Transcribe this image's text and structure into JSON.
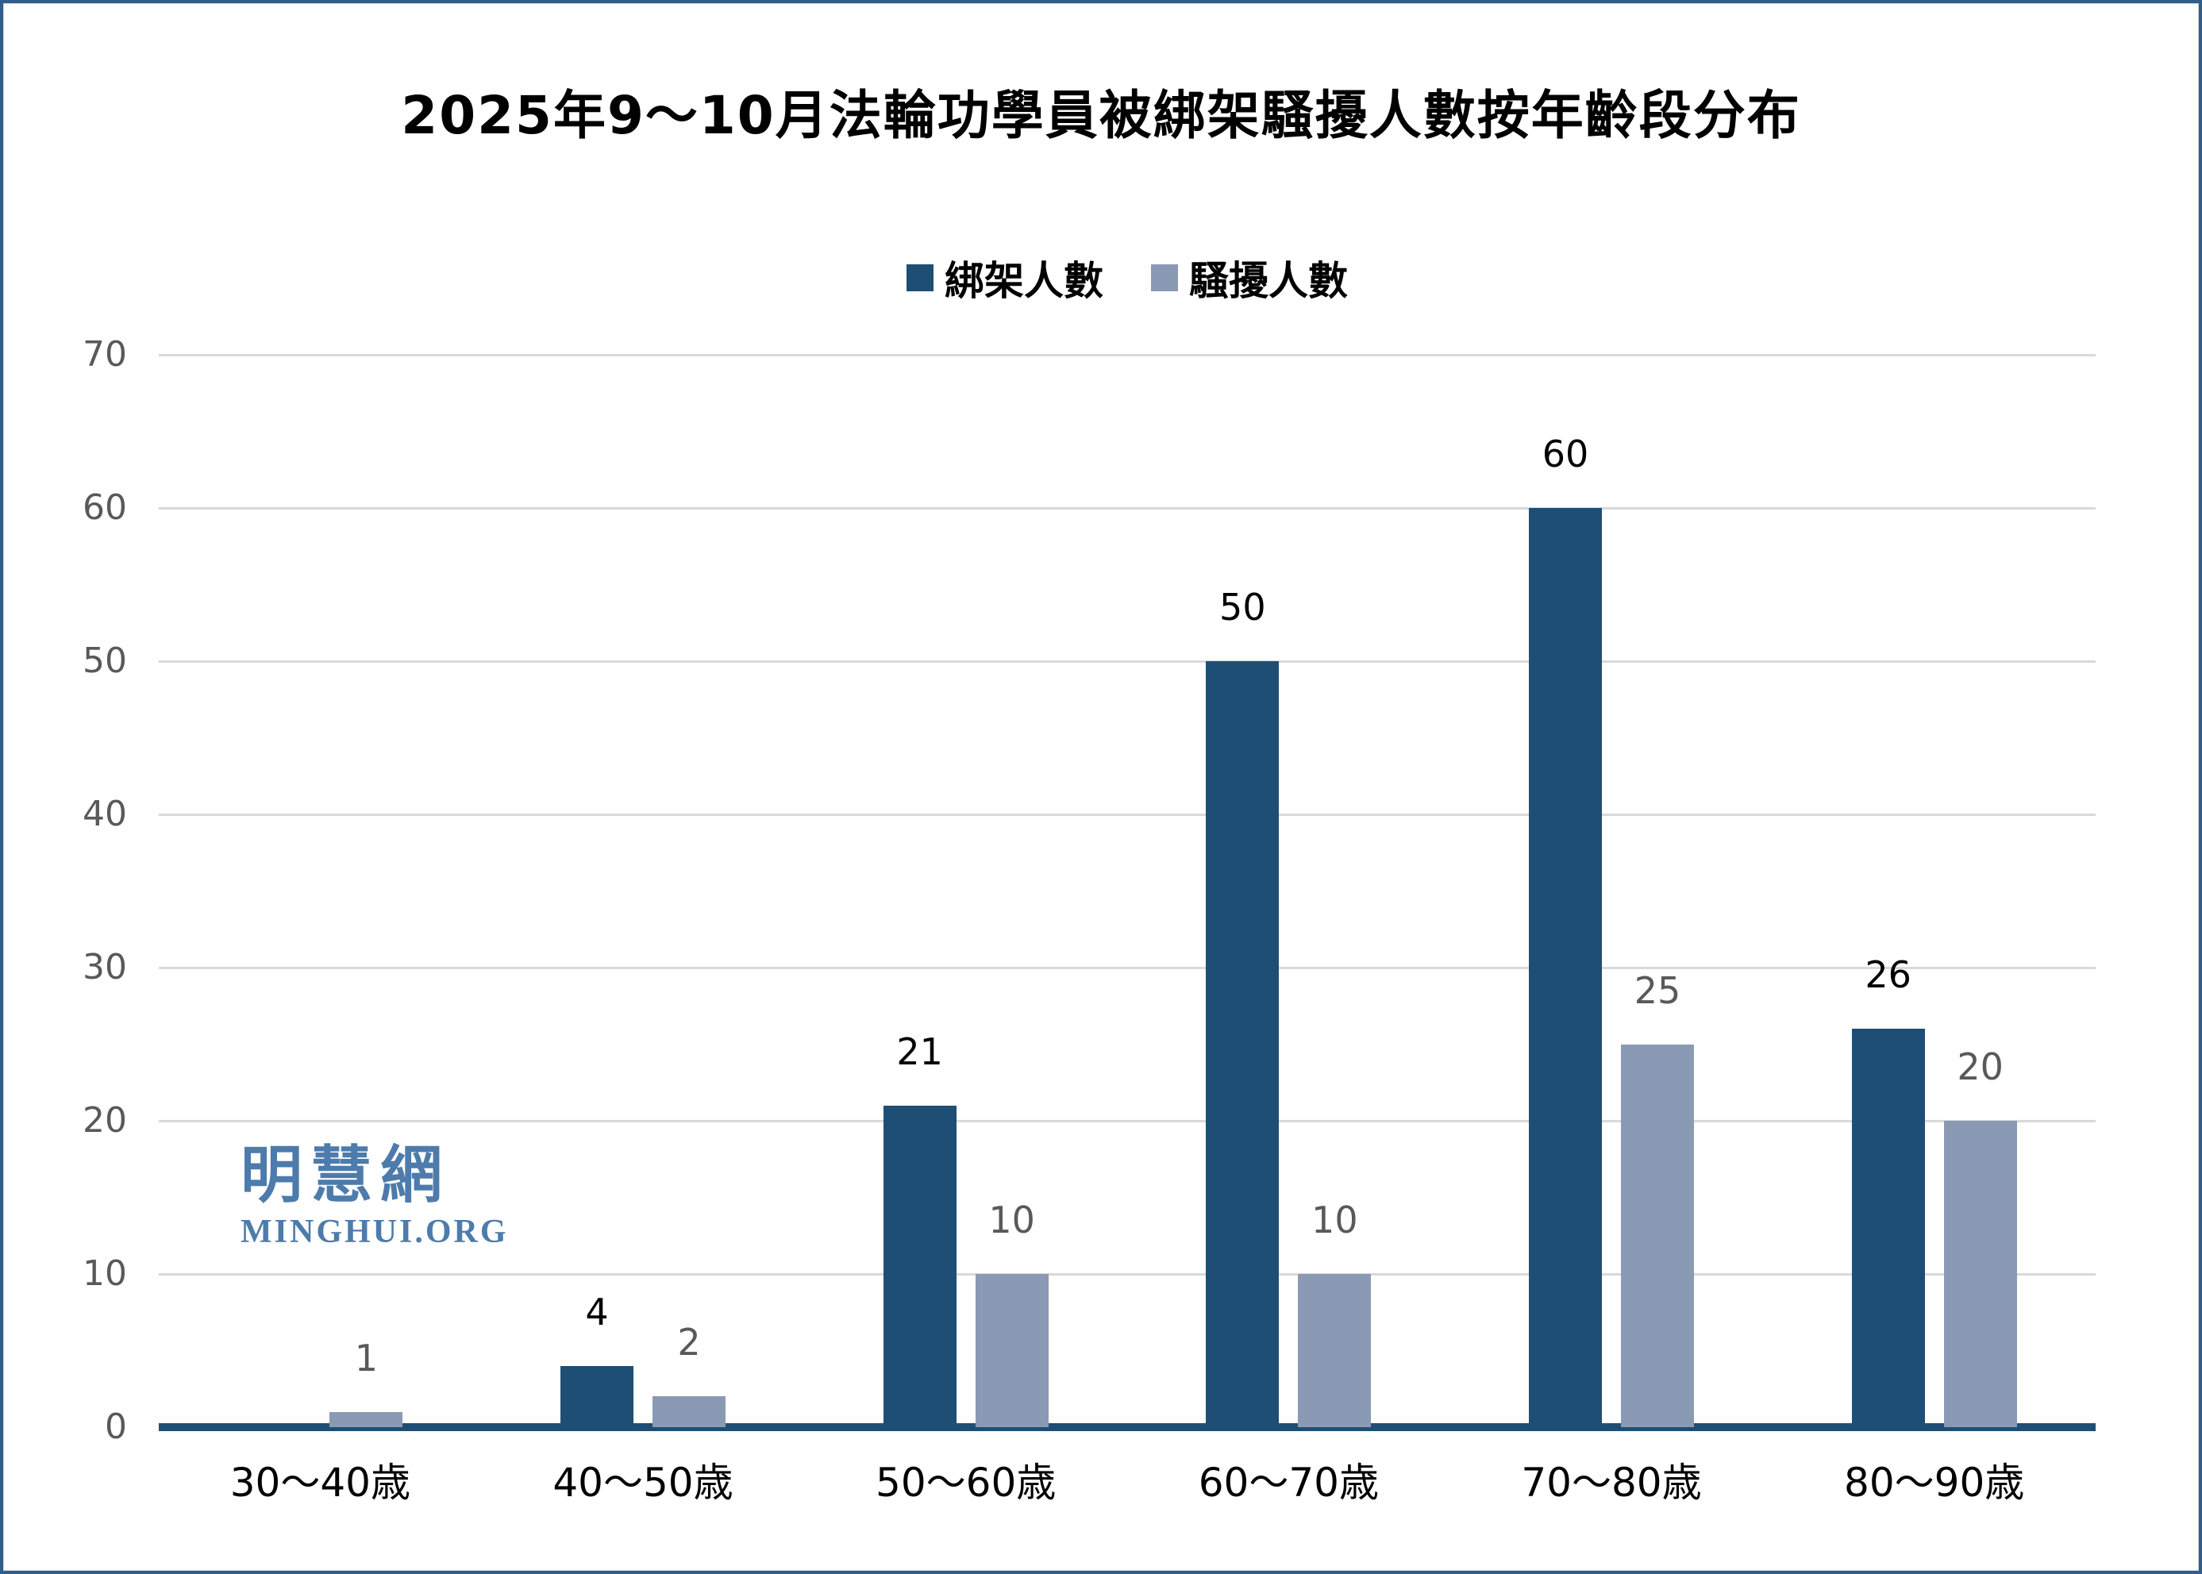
{
  "page": {
    "background": "#ffffff",
    "frame_color": "#2e5f8c"
  },
  "watermark": {
    "cjk": "明慧網",
    "latin": "MINGHUI.ORG",
    "color": "#4d7bab"
  },
  "chart_data": {
    "type": "bar",
    "title": "2025年9～10月法輪功學員被綁架騷擾人數按年齡段分布",
    "categories": [
      "30～40歳",
      "40～50歳",
      "50～60歳",
      "60～70歳",
      "70～80歳",
      "80～90歳"
    ],
    "series": [
      {
        "name": "綁架人數",
        "color": "#1f4e74",
        "values": [
          0,
          4,
          21,
          50,
          60,
          26
        ]
      },
      {
        "name": "騷擾人數",
        "color": "#8b9ab4",
        "values": [
          1,
          2,
          10,
          10,
          25,
          20
        ]
      }
    ],
    "xlabel": "",
    "ylabel": "",
    "ylim": [
      0,
      70
    ],
    "yticks": [
      0,
      10,
      20,
      30,
      40,
      50,
      60,
      70
    ],
    "grid": true,
    "legend_position": "top-center",
    "gridline_color": "#d9d9d9",
    "axis_line_color": "#1f4e74",
    "tick_label_color": "#595959",
    "value_label_colors": {
      "綁架人數": "#000000",
      "騷擾人數": "#595959"
    },
    "zero_values_hidden": true
  }
}
